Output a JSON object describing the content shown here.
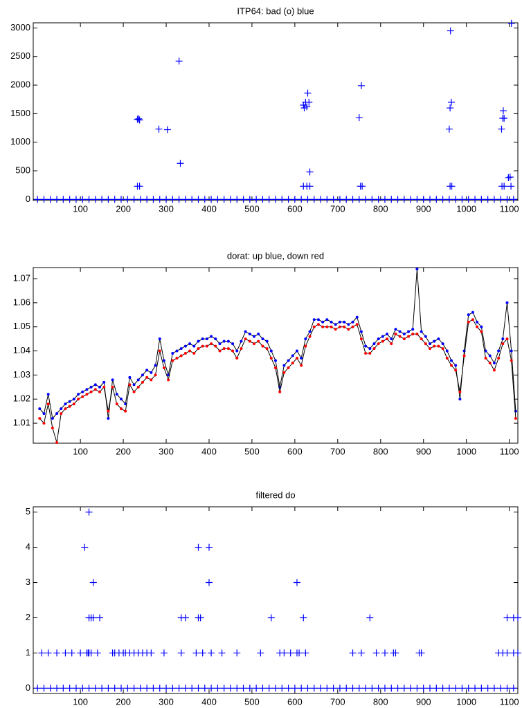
{
  "chart_data": [
    {
      "type": "scatter",
      "title": "ITP64: bad (o) blue",
      "xlim": [
        -10,
        1120
      ],
      "ylim": [
        -20,
        3090
      ],
      "xticks": [
        100,
        200,
        300,
        400,
        500,
        600,
        700,
        800,
        900,
        1000,
        1100
      ],
      "yticks": [
        0,
        500,
        1000,
        1500,
        2000,
        2500,
        3000
      ],
      "series": [
        {
          "color": "#0000ff",
          "marker": "plus",
          "x": [
            0,
            15,
            30,
            45,
            60,
            75,
            90,
            105,
            120,
            135,
            150,
            165,
            180,
            195,
            210,
            225,
            240,
            255,
            270,
            285,
            300,
            315,
            330,
            345,
            360,
            375,
            390,
            405,
            420,
            435,
            450,
            465,
            480,
            495,
            510,
            525,
            540,
            555,
            570,
            585,
            600,
            615,
            630,
            645,
            660,
            675,
            690,
            705,
            720,
            735,
            750,
            765,
            780,
            795,
            810,
            825,
            840,
            855,
            870,
            885,
            900,
            915,
            930,
            945,
            960,
            975,
            990,
            1005,
            1020,
            1035,
            1050,
            1065,
            1080,
            1095,
            1110
          ],
          "values": [
            0,
            0,
            0,
            0,
            0,
            0,
            0,
            0,
            0,
            0,
            0,
            0,
            0,
            0,
            0,
            0,
            0,
            0,
            0,
            0,
            0,
            0,
            0,
            0,
            0,
            0,
            0,
            0,
            0,
            0,
            0,
            0,
            0,
            0,
            0,
            0,
            0,
            0,
            0,
            0,
            0,
            0,
            0,
            0,
            0,
            0,
            0,
            0,
            0,
            0,
            0,
            0,
            0,
            0,
            0,
            0,
            0,
            0,
            0,
            0,
            0,
            0,
            0,
            0,
            0,
            0,
            0,
            0,
            0,
            0,
            0,
            0,
            0,
            0,
            0
          ]
        },
        {
          "color": "#0000ff",
          "marker": "plus",
          "x": [
            233,
            236,
            238,
            233,
            238,
            283,
            303,
            330,
            333,
            620,
            622,
            625,
            628,
            630,
            633,
            635,
            620,
            628,
            635,
            750,
            755,
            753,
            757,
            960,
            962,
            963,
            965,
            962,
            966,
            1082,
            1085,
            1086,
            1088,
            1083,
            1088,
            1098,
            1102,
            1104,
            1105
          ],
          "values": [
            1400,
            1410,
            1390,
            230,
            230,
            1230,
            1220,
            2420,
            630,
            1650,
            1600,
            1700,
            1620,
            1860,
            1700,
            480,
            230,
            230,
            230,
            1430,
            1990,
            230,
            230,
            1230,
            1600,
            2950,
            1700,
            230,
            230,
            1230,
            1420,
            1550,
            1420,
            230,
            230,
            380,
            390,
            230,
            3080
          ]
        }
      ]
    },
    {
      "type": "line",
      "title": "dorat: up blue, down red",
      "xlim": [
        -10,
        1120
      ],
      "ylim": [
        1.0017,
        1.0746
      ],
      "xticks": [
        100,
        200,
        300,
        400,
        500,
        600,
        700,
        800,
        900,
        1000,
        1100
      ],
      "yticks": [
        1.01,
        1.02,
        1.03,
        1.04,
        1.05,
        1.06,
        1.07
      ],
      "x": [
        5,
        15,
        25,
        35,
        45,
        55,
        65,
        75,
        85,
        95,
        105,
        115,
        125,
        135,
        145,
        155,
        165,
        175,
        185,
        195,
        205,
        215,
        225,
        235,
        245,
        255,
        265,
        275,
        285,
        295,
        305,
        315,
        325,
        335,
        345,
        355,
        365,
        375,
        385,
        395,
        405,
        415,
        425,
        435,
        445,
        455,
        465,
        475,
        485,
        495,
        505,
        515,
        525,
        535,
        545,
        555,
        565,
        575,
        585,
        595,
        605,
        615,
        625,
        635,
        645,
        655,
        665,
        675,
        685,
        695,
        705,
        715,
        725,
        735,
        745,
        755,
        765,
        775,
        785,
        795,
        805,
        815,
        825,
        835,
        845,
        855,
        865,
        875,
        885,
        895,
        905,
        915,
        925,
        935,
        945,
        955,
        965,
        975,
        985,
        995,
        1005,
        1015,
        1025,
        1035,
        1045,
        1055,
        1065,
        1075,
        1085,
        1095,
        1105,
        1115
      ],
      "series": [
        {
          "color": "#0000ff",
          "line_color": "#000000",
          "values": [
            1.016,
            1.014,
            1.022,
            1.012,
            1.014,
            1.016,
            1.018,
            1.019,
            1.02,
            1.022,
            1.023,
            1.024,
            1.025,
            1.026,
            1.025,
            1.027,
            1.012,
            1.028,
            1.022,
            1.02,
            1.018,
            1.029,
            1.026,
            1.028,
            1.03,
            1.032,
            1.031,
            1.034,
            1.045,
            1.036,
            1.03,
            1.039,
            1.04,
            1.041,
            1.042,
            1.043,
            1.042,
            1.044,
            1.045,
            1.045,
            1.046,
            1.045,
            1.043,
            1.044,
            1.044,
            1.043,
            1.04,
            1.044,
            1.048,
            1.047,
            1.046,
            1.047,
            1.045,
            1.044,
            1.04,
            1.036,
            1.025,
            1.034,
            1.036,
            1.038,
            1.04,
            1.037,
            1.045,
            1.048,
            1.053,
            1.053,
            1.052,
            1.053,
            1.052,
            1.051,
            1.052,
            1.052,
            1.051,
            1.052,
            1.054,
            1.048,
            1.042,
            1.041,
            1.043,
            1.045,
            1.046,
            1.047,
            1.045,
            1.049,
            1.048,
            1.047,
            1.048,
            1.049,
            1.074,
            1.048,
            1.046,
            1.043,
            1.044,
            1.045,
            1.043,
            1.04,
            1.036,
            1.034,
            1.02,
            1.04,
            1.055,
            1.056,
            1.052,
            1.05,
            1.04,
            1.038,
            1.035,
            1.04,
            1.045,
            1.06,
            1.04,
            1.015
          ]
        },
        {
          "color": "#ff0000",
          "line_color": "#000000",
          "values": [
            1.012,
            1.01,
            1.018,
            1.008,
            1.002,
            1.014,
            1.016,
            1.017,
            1.018,
            1.02,
            1.021,
            1.022,
            1.023,
            1.024,
            1.023,
            1.025,
            1.015,
            1.025,
            1.018,
            1.016,
            1.015,
            1.026,
            1.023,
            1.025,
            1.027,
            1.029,
            1.028,
            1.03,
            1.04,
            1.033,
            1.028,
            1.036,
            1.037,
            1.038,
            1.039,
            1.04,
            1.039,
            1.041,
            1.042,
            1.042,
            1.043,
            1.042,
            1.04,
            1.041,
            1.041,
            1.04,
            1.037,
            1.041,
            1.045,
            1.044,
            1.043,
            1.044,
            1.042,
            1.041,
            1.037,
            1.033,
            1.023,
            1.031,
            1.033,
            1.035,
            1.037,
            1.034,
            1.042,
            1.046,
            1.05,
            1.051,
            1.05,
            1.05,
            1.05,
            1.049,
            1.05,
            1.05,
            1.049,
            1.05,
            1.051,
            1.045,
            1.039,
            1.039,
            1.041,
            1.043,
            1.044,
            1.045,
            1.043,
            1.047,
            1.046,
            1.045,
            1.046,
            1.047,
            1.047,
            1.045,
            1.043,
            1.041,
            1.042,
            1.042,
            1.041,
            1.037,
            1.034,
            1.032,
            1.023,
            1.038,
            1.052,
            1.053,
            1.05,
            1.048,
            1.037,
            1.035,
            1.032,
            1.037,
            1.043,
            1.045,
            1.036,
            1.012
          ]
        }
      ]
    },
    {
      "type": "scatter",
      "title": "filtered do",
      "xlim": [
        -10,
        1120
      ],
      "ylim": [
        -0.15,
        5.15
      ],
      "xticks": [
        100,
        200,
        300,
        400,
        500,
        600,
        700,
        800,
        900,
        1000,
        1100
      ],
      "yticks": [
        0,
        1,
        2,
        3,
        4,
        5
      ],
      "series": [
        {
          "color": "#0000ff",
          "marker": "plus",
          "x": [
            0,
            15,
            30,
            45,
            60,
            75,
            90,
            105,
            120,
            135,
            150,
            165,
            180,
            195,
            210,
            225,
            240,
            255,
            270,
            285,
            300,
            315,
            330,
            345,
            360,
            375,
            390,
            405,
            420,
            435,
            450,
            465,
            480,
            495,
            510,
            525,
            540,
            555,
            570,
            585,
            600,
            615,
            630,
            645,
            660,
            675,
            690,
            705,
            720,
            735,
            750,
            765,
            780,
            795,
            810,
            825,
            840,
            855,
            870,
            885,
            900,
            915,
            930,
            945,
            960,
            975,
            990,
            1005,
            1020,
            1035,
            1050,
            1065,
            1080,
            1095,
            1110
          ],
          "values": [
            0,
            0,
            0,
            0,
            0,
            0,
            0,
            0,
            0,
            0,
            0,
            0,
            0,
            0,
            0,
            0,
            0,
            0,
            0,
            0,
            0,
            0,
            0,
            0,
            0,
            0,
            0,
            0,
            0,
            0,
            0,
            0,
            0,
            0,
            0,
            0,
            0,
            0,
            0,
            0,
            0,
            0,
            0,
            0,
            0,
            0,
            0,
            0,
            0,
            0,
            0,
            0,
            0,
            0,
            0,
            0,
            0,
            0,
            0,
            0,
            0,
            0,
            0,
            0,
            0,
            0,
            0,
            0,
            0,
            0,
            0,
            0,
            0,
            0,
            0
          ]
        },
        {
          "color": "#0000ff",
          "marker": "plus",
          "x": [
            10,
            25,
            45,
            65,
            80,
            100,
            115,
            118,
            120,
            125,
            140,
            175,
            180,
            190,
            200,
            205,
            215,
            225,
            235,
            245,
            255,
            265,
            295,
            335,
            370,
            385,
            405,
            430,
            465,
            520,
            565,
            575,
            590,
            605,
            610,
            625,
            735,
            755,
            790,
            810,
            830,
            835,
            890,
            895,
            1075,
            1085,
            1095,
            1110,
            1120,
            120,
            125,
            130,
            145,
            335,
            345,
            375,
            380,
            545,
            620,
            775,
            1095,
            1110,
            1120,
            130,
            400,
            605,
            110,
            375,
            400,
            120
          ],
          "values": [
            1,
            1,
            1,
            1,
            1,
            1,
            1,
            1,
            1,
            1,
            1,
            1,
            1,
            1,
            1,
            1,
            1,
            1,
            1,
            1,
            1,
            1,
            1,
            1,
            1,
            1,
            1,
            1,
            1,
            1,
            1,
            1,
            1,
            1,
            1,
            1,
            1,
            1,
            1,
            1,
            1,
            1,
            1,
            1,
            1,
            1,
            1,
            1,
            1,
            2,
            2,
            2,
            2,
            2,
            2,
            2,
            2,
            2,
            2,
            2,
            2,
            2,
            2,
            3,
            3,
            3,
            4,
            4,
            4,
            5
          ]
        }
      ]
    }
  ]
}
